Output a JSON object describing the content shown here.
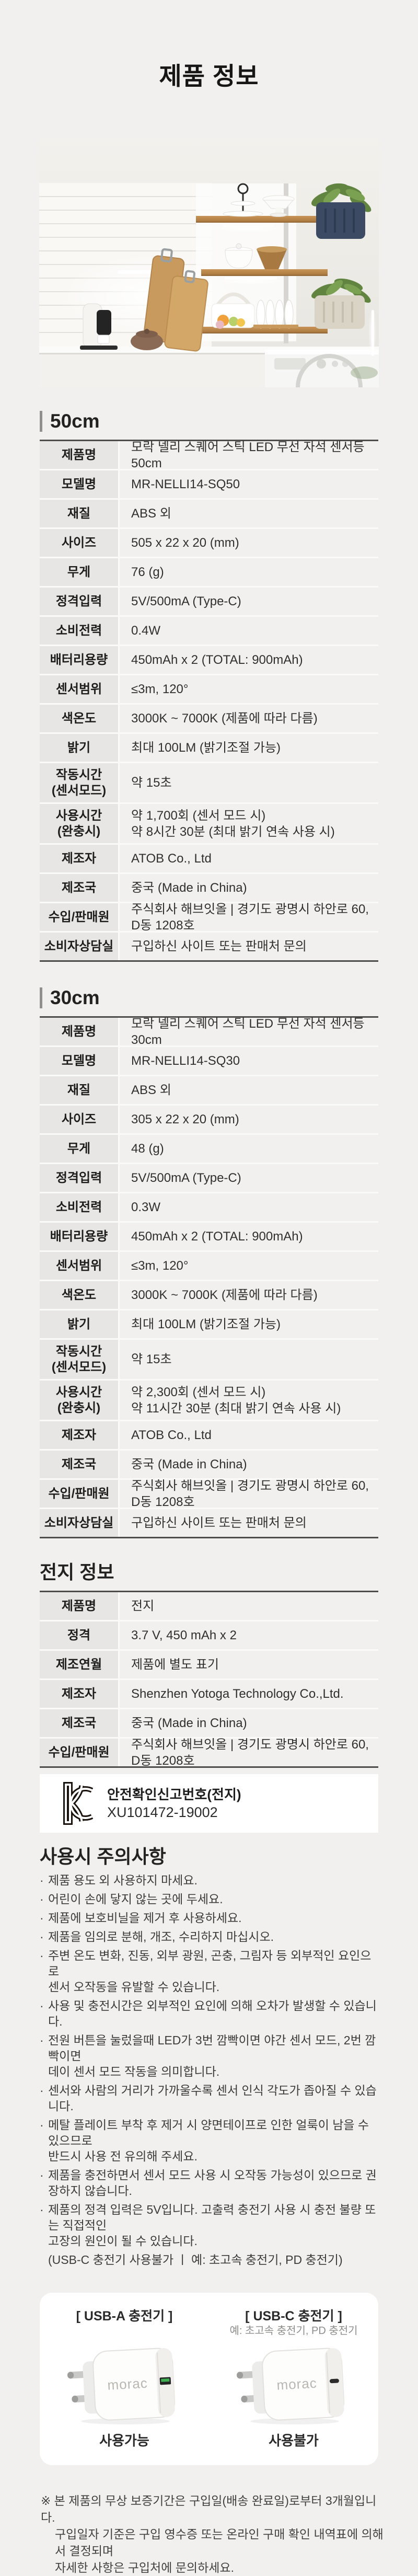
{
  "page": {
    "title": "제품 정보"
  },
  "photo": {
    "name": "kitchen-shelf-sensor-light-scene"
  },
  "sections": [
    {
      "title": "50cm",
      "rows": [
        {
          "label": "제품명",
          "value": "모락 넬리 스퀘어 스틱 LED 무선 자석 센서등 50cm"
        },
        {
          "label": "모델명",
          "value": "MR-NELLI14-SQ50"
        },
        {
          "label": "재질",
          "value": "ABS 외"
        },
        {
          "label": "사이즈",
          "value": "505 x 22 x 20 (mm)"
        },
        {
          "label": "무게",
          "value": "76 (g)"
        },
        {
          "label": "정격입력",
          "value": "5V/500mA (Type-C)"
        },
        {
          "label": "소비전력",
          "value": "0.4W"
        },
        {
          "label": "배터리용량",
          "value": "450mAh x 2 (TOTAL: 900mAh)"
        },
        {
          "label": "센서범위",
          "value": "≤3m, 120°"
        },
        {
          "label": "색온도",
          "value": "3000K ~ 7000K (제품에 따라 다름)"
        },
        {
          "label": "밝기",
          "value": "최대 100LM (밝기조절 가능)"
        },
        {
          "label": "작동시간\n(센서모드)",
          "value": "약 15초"
        },
        {
          "label": "사용시간\n(완충시)",
          "value": "약 1,700회 (센서 모드 시)\n약 8시간 30분 (최대 밝기 연속 사용 시)"
        },
        {
          "label": "제조자",
          "value": "ATOB Co., Ltd"
        },
        {
          "label": "제조국",
          "value": "중국 (Made in China)"
        },
        {
          "label": "수입/판매원",
          "value": "주식회사 해브잇올 | 경기도 광명시 하안로 60, D동 1208호"
        },
        {
          "label": "소비자상담실",
          "value": "구입하신 사이트 또는 판매처 문의"
        }
      ]
    },
    {
      "title": "30cm",
      "rows": [
        {
          "label": "제품명",
          "value": "모락 넬리 스퀘어 스틱 LED 무선 자석 센서등 30cm"
        },
        {
          "label": "모델명",
          "value": "MR-NELLI14-SQ30"
        },
        {
          "label": "재질",
          "value": "ABS 외"
        },
        {
          "label": "사이즈",
          "value": "305 x 22 x 20 (mm)"
        },
        {
          "label": "무게",
          "value": "48 (g)"
        },
        {
          "label": "정격입력",
          "value": "5V/500mA (Type-C)"
        },
        {
          "label": "소비전력",
          "value": "0.3W"
        },
        {
          "label": "배터리용량",
          "value": "450mAh x 2 (TOTAL: 900mAh)"
        },
        {
          "label": "센서범위",
          "value": "≤3m, 120°"
        },
        {
          "label": "색온도",
          "value": "3000K ~ 7000K (제품에 따라 다름)"
        },
        {
          "label": "밝기",
          "value": "최대 100LM (밝기조절 가능)"
        },
        {
          "label": "작동시간\n(센서모드)",
          "value": "약 15초"
        },
        {
          "label": "사용시간\n(완충시)",
          "value": "약 2,300회 (센서 모드 시)\n약 11시간 30분 (최대 밝기 연속 사용 시)"
        },
        {
          "label": "제조자",
          "value": "ATOB Co., Ltd"
        },
        {
          "label": "제조국",
          "value": "중국 (Made in China)"
        },
        {
          "label": "수입/판매원",
          "value": "주식회사 해브잇올 | 경기도 광명시 하안로 60, D동 1208호"
        },
        {
          "label": "소비자상담실",
          "value": "구입하신 사이트 또는 판매처 문의"
        }
      ]
    },
    {
      "title": "전지 정보",
      "rows": [
        {
          "label": "제품명",
          "value": "전지"
        },
        {
          "label": "정격",
          "value": "3.7 V, 450 mAh x 2"
        },
        {
          "label": "제조연월",
          "value": "제품에 별도 표기"
        },
        {
          "label": "제조자",
          "value": "Shenzhen Yotoga Technology Co.,Ltd."
        },
        {
          "label": "제조국",
          "value": "중국 (Made in China)"
        },
        {
          "label": "수입/판매원",
          "value": "주식회사 해브잇올 | 경기도 광명시 하안로 60, D동 1208호"
        }
      ]
    }
  ],
  "kc": {
    "icon": "kc-certification-mark",
    "title": "안전확인신고번호(전지)",
    "number": "XU101472-19002"
  },
  "precautions": {
    "title": "사용시 주의사항",
    "items": [
      {
        "text": "제품 용도 외 사용하지 마세요."
      },
      {
        "text": "어린이 손에 닿지 않는 곳에 두세요."
      },
      {
        "text": "제품에 보호비닐을 제거 후 사용하세요."
      },
      {
        "text": "제품을 임의로 분해, 개조, 수리하지 마십시오."
      },
      {
        "text": "주변 온도 변화, 진동, 외부 광원, 곤충, 그림자 등 외부적인 요인으로\n센서 오작동을 유발할 수 있습니다."
      },
      {
        "text": "사용 및 충전시간은 외부적인 요인에 의해 오차가 발생할 수 있습니다."
      },
      {
        "text": "전원 버튼을 눌렀을때 LED가 3번 깜빡이면 야간 센서 모드, 2번 깜빡이면\n데이 센서 모드 작동을 의미합니다."
      },
      {
        "text": "센서와 사람의 거리가 가까울수록 센서 인식 각도가 좁아질 수 있습니다."
      },
      {
        "text": "메탈 플레이트 부착 후 제거 시 양면테이프로 인한 얼룩이 남을 수 있으므로\n반드시 사용 전 유의해 주세요."
      },
      {
        "text": "제품을 충전하면서 센서 모드 사용 시 오작동 가능성이 있으므로 권장하지 않습니다."
      },
      {
        "text": "제품의 정격 입력은 5V입니다. 고출력 충전기 사용 시 충전 불량 또는 직접적인\n고장의 원인이 될 수 있습니다."
      },
      {
        "text": "(USB-C 충전기 사용불가 ㅣ 예: 초고속 충전기, PD 충전기)",
        "bullet": false
      }
    ]
  },
  "charger_card": {
    "left": {
      "title": "[ USB-A 충전기 ]",
      "note": "",
      "brand": "morac",
      "status": "사용가능"
    },
    "right": {
      "title": "[ USB-C 충전기 ]",
      "note": "예: 초고속 충전기, PD 충전기",
      "brand": "morac",
      "status": "사용불가"
    }
  },
  "footer": {
    "lines": [
      "※ 본 제품의 무상 보증기간은 구입일(배송 완료일)로부터 3개월입니다.",
      "구입일자 기준은 구입 영수증 또는 온라인 구매 확인 내역표에 의해서 결정되며",
      "자세한 사항은 구입처에 문의하세요."
    ]
  },
  "colors": {
    "page_bg": "#f1f0ee",
    "label_cell": "#e7e6e4",
    "table_border": "#4c4c4a",
    "usb_a_port_green": "#3fae53",
    "wood": "#c08a4f",
    "kc_mark": "#1a120c"
  }
}
